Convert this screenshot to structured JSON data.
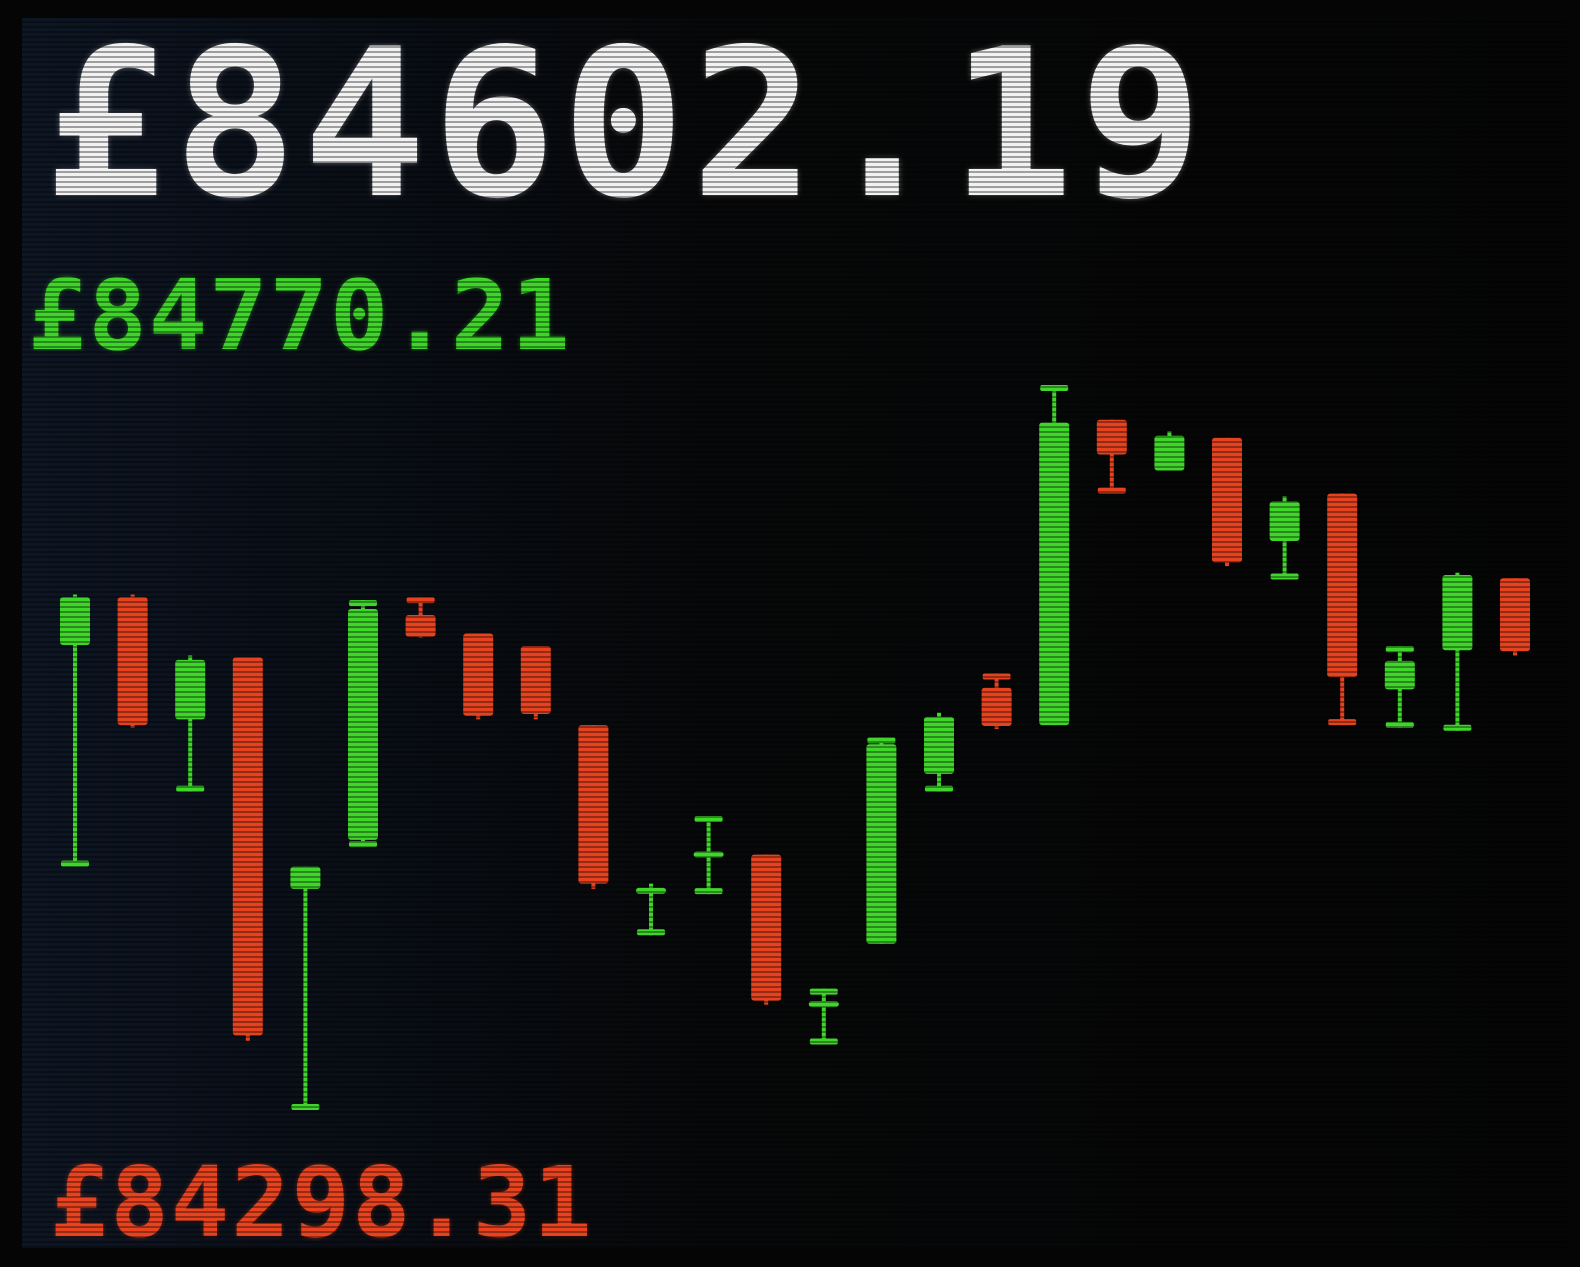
{
  "header": {
    "current_price": "£84602.19"
  },
  "chart_data": {
    "type": "candlestick",
    "high_label": "£84770.21",
    "low_label": "£84298.31",
    "ylim": [
      84298.31,
      84770.21
    ],
    "colors": {
      "up": "#3fd52a",
      "down": "#e5421f"
    },
    "candles": [
      {
        "open": 84611.5,
        "high": 84642.3,
        "low": 84476.2,
        "close": 84640.7,
        "direction": "up"
      },
      {
        "open": 84640.7,
        "high": 84642.3,
        "low": 84560.9,
        "close": 84562.6,
        "direction": "down"
      },
      {
        "open": 84566.1,
        "high": 84605.1,
        "low": 84521.9,
        "close": 84602.4,
        "direction": "up"
      },
      {
        "open": 84604.0,
        "high": 84604.0,
        "low": 84369.9,
        "close": 84373.2,
        "direction": "down"
      },
      {
        "open": 84476.2,
        "high": 84476.2,
        "low": 84327.6,
        "close": 84462.6,
        "direction": "up"
      },
      {
        "open": 84492.5,
        "high": 84638.9,
        "low": 84488.1,
        "close": 84633.5,
        "direction": "up"
      },
      {
        "open": 84629.8,
        "high": 84640.7,
        "low": 84615.9,
        "close": 84616.5,
        "direction": "down"
      },
      {
        "open": 84618.5,
        "high": 84618.5,
        "low": 84566.1,
        "close": 84568.3,
        "direction": "down"
      },
      {
        "open": 84610.8,
        "high": 84610.8,
        "low": 84566.1,
        "close": 84569.4,
        "direction": "down"
      },
      {
        "open": 84562.6,
        "high": 84562.6,
        "low": 84462.6,
        "close": 84465.8,
        "direction": "down"
      },
      {
        "open": 84463.3,
        "high": 84465.8,
        "low": 84434.3,
        "close": 84460.5,
        "direction": "up"
      },
      {
        "open": 84482.8,
        "high": 84507.1,
        "low": 84459.4,
        "close": 84485.4,
        "direction": "up"
      },
      {
        "open": 84483.5,
        "high": 84483.5,
        "low": 84391.9,
        "close": 84394.4,
        "direction": "down"
      },
      {
        "open": 84391.9,
        "high": 84401.7,
        "low": 84367.6,
        "close": 84394.1,
        "direction": "up"
      },
      {
        "open": 84429.1,
        "high": 84555.1,
        "low": 84429.1,
        "close": 84550.9,
        "direction": "up"
      },
      {
        "open": 84532.8,
        "high": 84570.2,
        "low": 84521.9,
        "close": 84567.6,
        "direction": "up"
      },
      {
        "open": 84585.4,
        "high": 84594.1,
        "low": 84560.2,
        "close": 84562.0,
        "direction": "down"
      },
      {
        "open": 84562.6,
        "high": 84770.2,
        "low": 84562.6,
        "close": 84747.3,
        "direction": "up"
      },
      {
        "open": 84749.0,
        "high": 84749.0,
        "low": 84704.0,
        "close": 84727.8,
        "direction": "down"
      },
      {
        "open": 84718.0,
        "high": 84741.9,
        "low": 84718.0,
        "close": 84739.2,
        "direction": "up"
      },
      {
        "open": 84738.0,
        "high": 84738.0,
        "low": 84659.6,
        "close": 84661.9,
        "direction": "down"
      },
      {
        "open": 84675.0,
        "high": 84702.3,
        "low": 84651.5,
        "close": 84699.1,
        "direction": "up"
      },
      {
        "open": 84703.9,
        "high": 84703.9,
        "low": 84562.6,
        "close": 84591.9,
        "direction": "down"
      },
      {
        "open": 84584.4,
        "high": 84610.8,
        "low": 84560.9,
        "close": 84601.8,
        "direction": "up"
      },
      {
        "open": 84608.3,
        "high": 84655.7,
        "low": 84559.1,
        "close": 84654.2,
        "direction": "up"
      },
      {
        "open": 84652.2,
        "high": 84652.2,
        "low": 84605.1,
        "close": 84607.7,
        "direction": "down"
      }
    ]
  }
}
